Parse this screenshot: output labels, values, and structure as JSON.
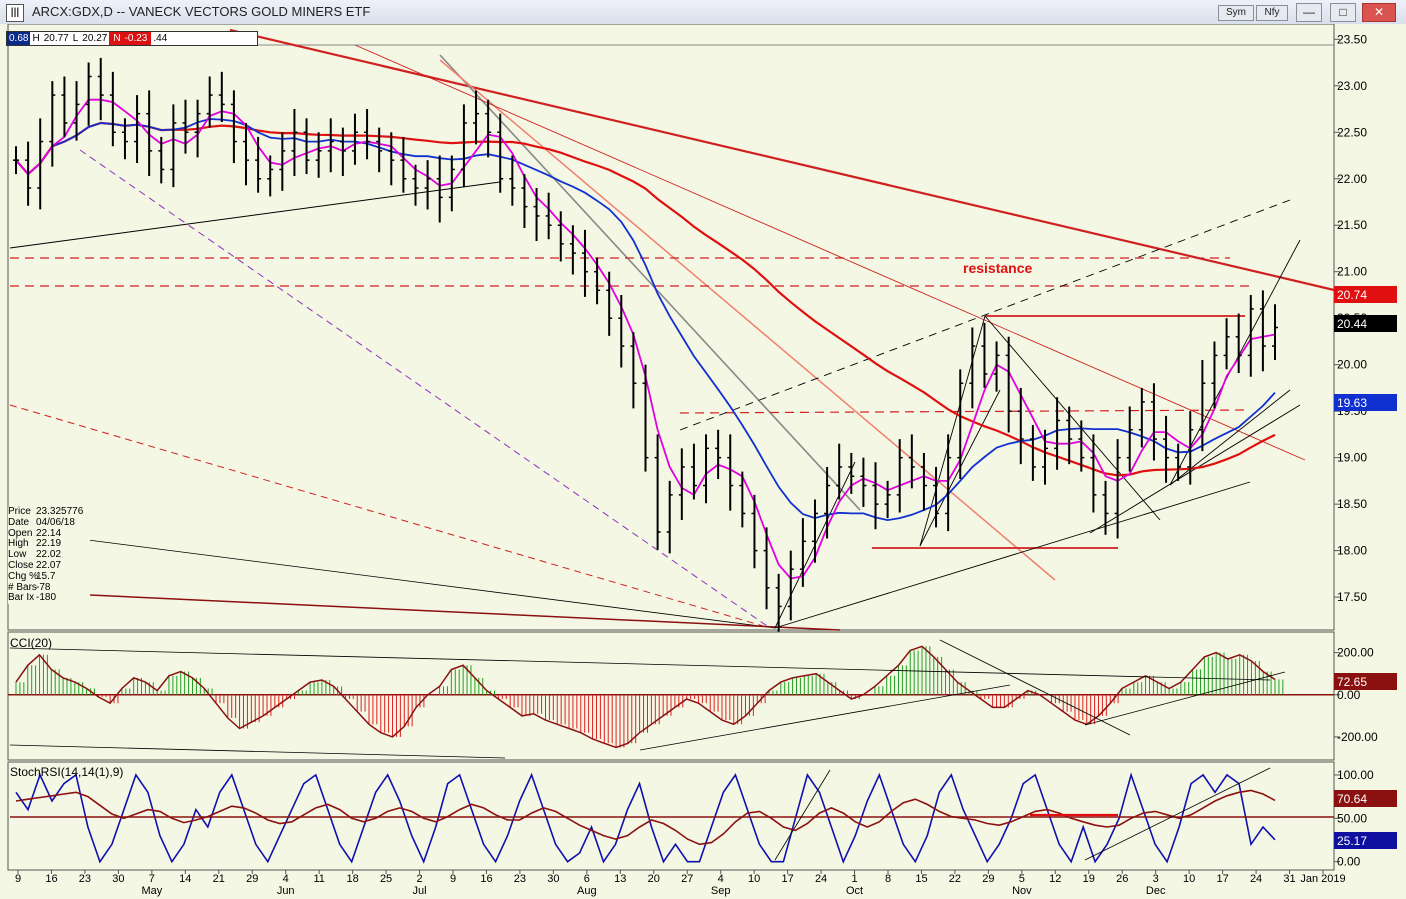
{
  "window": {
    "title": "ARCX:GDX,D -- VANECK VECTORS GOLD MINERS ETF",
    "sym_label": "Sym",
    "nfy_label": "Nfy",
    "minimize": "—",
    "maximize": "□",
    "close": "✕"
  },
  "price_info": {
    "open_label": "0.68",
    "high_label": "H",
    "high_value": "20.77",
    "low_label": "L",
    "low_value": "20.27",
    "chg_label": "N",
    "chg_value": "-0.23",
    "extra": ".44"
  },
  "data_window": [
    {
      "k": "Price",
      "v": "23.325776"
    },
    {
      "k": "Date",
      "v": "04/06/18"
    },
    {
      "k": "Open",
      "v": "22.14"
    },
    {
      "k": "High",
      "v": "22.19"
    },
    {
      "k": "Low",
      "v": "22.02"
    },
    {
      "k": "Close",
      "v": "22.07"
    },
    {
      "k": "Chg %",
      "v": "15.7"
    },
    {
      "k": "# Bars",
      "v": "-78"
    },
    {
      "k": "Bar Ix",
      "v": "-180"
    }
  ],
  "chart_data": [
    {
      "type": "line",
      "title": "ARCX:GDX,D -- VANECK VECTORS GOLD MINERS ETF",
      "series_type": "ohlc bars with moving averages",
      "ylim": [
        17.2,
        23.6
      ],
      "ytick_labels": [
        "23.50",
        "23.00",
        "22.50",
        "22.00",
        "21.50",
        "21.00",
        "20.50",
        "20.00",
        "19.50",
        "19.00",
        "18.50",
        "18.00",
        "17.50"
      ],
      "yticks": [
        23.5,
        23.0,
        22.5,
        22.0,
        21.5,
        21.0,
        20.5,
        20.0,
        19.5,
        19.0,
        18.5,
        18.0,
        17.5
      ],
      "x_tick_labels": [
        "9",
        "16",
        "23",
        "30",
        "7",
        "14",
        "21",
        "29",
        "4",
        "11",
        "18",
        "25",
        "2",
        "9",
        "16",
        "23",
        "30",
        "6",
        "13",
        "20",
        "27",
        "4",
        "10",
        "17",
        "24",
        "1",
        "8",
        "15",
        "22",
        "29",
        "5",
        "12",
        "19",
        "26",
        "3",
        "10",
        "17",
        "24",
        "31",
        "Jan 2019"
      ],
      "month_labels": [
        "May",
        "Jun",
        "Jul",
        "Aug",
        "Sep",
        "Oct",
        "Nov",
        "Dec"
      ],
      "annotations": [
        "resistance"
      ],
      "price_badges": [
        {
          "label": "20.74",
          "color": "#e01010"
        },
        {
          "label": "20.44",
          "color": "#000000"
        },
        {
          "label": "19.63",
          "color": "#1030d0"
        }
      ],
      "closes": [
        22.2,
        21.9,
        22.4,
        22.9,
        22.6,
        22.8,
        23.1,
        22.9,
        22.5,
        22.4,
        22.7,
        22.3,
        22.1,
        22.6,
        22.5,
        22.7,
        22.9,
        22.8,
        22.4,
        22.2,
        22.0,
        22.1,
        22.3,
        22.5,
        22.2,
        22.3,
        22.4,
        22.3,
        22.5,
        22.4,
        22.3,
        22.2,
        22.0,
        21.9,
        22.0,
        21.8,
        22.1,
        22.6,
        22.7,
        22.5,
        22.0,
        21.9,
        21.7,
        21.6,
        21.5,
        21.3,
        21.2,
        21.0,
        20.8,
        20.5,
        20.2,
        19.8,
        19.0,
        18.2,
        18.6,
        18.9,
        18.7,
        19.1,
        19.0,
        18.7,
        18.4,
        18.0,
        17.6,
        17.4,
        17.8,
        18.1,
        18.4,
        18.7,
        18.9,
        18.8,
        18.7,
        18.5,
        18.6,
        19.0,
        18.9,
        18.7,
        18.4,
        19.0,
        19.8,
        20.2,
        19.9,
        20.1,
        19.5,
        19.2,
        18.9,
        19.1,
        19.4,
        19.2,
        19.0,
        18.6,
        18.4,
        19.0,
        19.3,
        19.6,
        19.2,
        19.0,
        18.9,
        19.3,
        19.8,
        20.1,
        20.3,
        20.1,
        20.6,
        20.2,
        20.4
      ],
      "moving_averages": [
        {
          "color": "#e01010",
          "last": "20.74"
        },
        {
          "color": "#1030d0",
          "last": "19.63"
        },
        {
          "color": "#e000e0"
        }
      ]
    },
    {
      "type": "bar",
      "title": "CCI(20)",
      "ylim": [
        -300,
        260
      ],
      "ytick_labels": [
        "200.00",
        "0.00",
        "-200.00"
      ],
      "yticks": [
        200,
        0,
        -200
      ],
      "badge": "72.65",
      "values": [
        60,
        140,
        190,
        120,
        80,
        60,
        30,
        -10,
        -40,
        30,
        80,
        60,
        20,
        90,
        110,
        80,
        30,
        -40,
        -110,
        -160,
        -130,
        -100,
        -60,
        -20,
        20,
        60,
        70,
        40,
        -20,
        -80,
        -140,
        -180,
        -200,
        -150,
        -60,
        0,
        40,
        120,
        140,
        80,
        20,
        -20,
        -60,
        -100,
        -90,
        -120,
        -140,
        -160,
        -180,
        -210,
        -230,
        -250,
        -230,
        -180,
        -140,
        -100,
        -60,
        -20,
        -40,
        -80,
        -120,
        -140,
        -100,
        -40,
        20,
        60,
        80,
        90,
        100,
        60,
        20,
        -20,
        0,
        40,
        90,
        140,
        210,
        230,
        180,
        120,
        60,
        20,
        -20,
        -60,
        -60,
        -20,
        20,
        0,
        -40,
        -80,
        -120,
        -140,
        -100,
        -40,
        30,
        60,
        90,
        60,
        30,
        60,
        120,
        180,
        200,
        170,
        190,
        160,
        110,
        72.65
      ]
    },
    {
      "type": "line",
      "title": "StochRSI(14,14(1),9)",
      "ylim": [
        -5,
        108
      ],
      "ytick_labels": [
        "100.00",
        "50.00",
        "0.00"
      ],
      "yticks": [
        100,
        50,
        0
      ],
      "badges": [
        {
          "label": "70.64",
          "color": "#8b1010"
        },
        {
          "label": "25.17",
          "color": "#1010a0"
        }
      ],
      "series": [
        {
          "name": "StochRSI",
          "color": "#1010b0",
          "values": [
            80,
            60,
            100,
            70,
            90,
            100,
            40,
            0,
            20,
            60,
            100,
            80,
            30,
            0,
            20,
            60,
            40,
            80,
            100,
            60,
            20,
            0,
            30,
            60,
            90,
            100,
            60,
            20,
            0,
            40,
            80,
            100,
            70,
            30,
            0,
            40,
            90,
            100,
            60,
            20,
            0,
            30,
            70,
            100,
            60,
            20,
            0,
            10,
            40,
            0,
            20,
            60,
            90,
            40,
            0,
            20,
            0,
            0,
            40,
            80,
            100,
            60,
            20,
            0,
            0,
            50,
            100,
            80,
            40,
            0,
            30,
            70,
            100,
            60,
            20,
            0,
            30,
            80,
            100,
            60,
            30,
            0,
            20,
            50,
            90,
            100,
            60,
            20,
            0,
            40,
            0,
            20,
            50,
            100,
            60,
            20,
            0,
            40,
            90,
            100,
            80,
            100,
            90,
            20,
            40,
            25.17
          ]
        },
        {
          "name": "Signal",
          "color": "#8b1010",
          "values": [
            70,
            72,
            74,
            76,
            78,
            80,
            75,
            65,
            55,
            50,
            55,
            60,
            58,
            50,
            45,
            48,
            52,
            58,
            64,
            62,
            56,
            48,
            44,
            46,
            54,
            62,
            66,
            60,
            50,
            46,
            50,
            58,
            62,
            58,
            50,
            46,
            52,
            60,
            66,
            62,
            54,
            48,
            48,
            56,
            62,
            58,
            50,
            42,
            36,
            30,
            26,
            30,
            40,
            48,
            44,
            36,
            26,
            20,
            22,
            32,
            46,
            56,
            58,
            50,
            40,
            36,
            44,
            56,
            62,
            56,
            46,
            40,
            46,
            58,
            68,
            72,
            66,
            58,
            52,
            50,
            48,
            44,
            42,
            46,
            52,
            58,
            60,
            56,
            50,
            46,
            42,
            40,
            42,
            50,
            56,
            58,
            54,
            50,
            54,
            62,
            70,
            76,
            80,
            82,
            78,
            70.64
          ]
        }
      ]
    }
  ]
}
